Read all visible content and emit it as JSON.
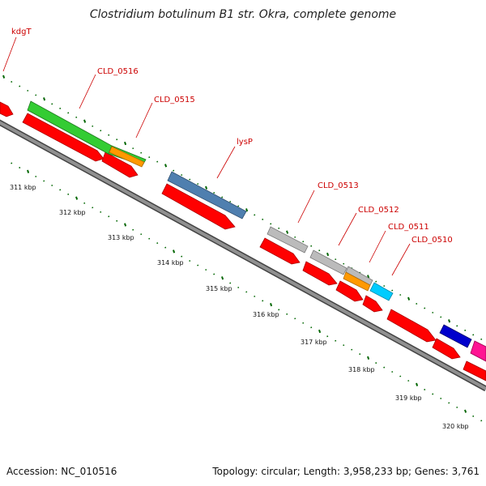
{
  "title": "Clostridium botulinum B1 str. Okra, complete genome",
  "footer": {
    "accession": "Accession: NC_010516",
    "summary": "Topology: circular; Length: 3,958,233 bp; Genes: 3,761"
  },
  "gene_labels": [
    "kdgT",
    "CLD_0516",
    "CLD_0515",
    "lysP",
    "CLD_0513",
    "CLD_0512",
    "CLD_0511",
    "CLD_0510"
  ],
  "kbp_labels": [
    "311 kbp",
    "312 kbp",
    "313 kbp",
    "314 kbp",
    "315 kbp",
    "316 kbp",
    "317 kbp",
    "318 kbp",
    "319 kbp",
    "320 kbp"
  ],
  "colors": {
    "gene_forward": "#ff0000",
    "label_red": "#cc0000",
    "green_gene": "#33cc33",
    "orange_gene": "#ff9900",
    "steel_blue_gene": "#4f7faf",
    "gray_gene": "#bbbbbb",
    "cyan_gene": "#00ccff",
    "blue_gene": "#0000cc",
    "magenta_gene": "#ff1493",
    "tick_green": "#006600",
    "backbone": "#808080"
  },
  "icons": [
    "red-arrow-gene",
    "green-gene-bar",
    "orange-gene-bar"
  ]
}
